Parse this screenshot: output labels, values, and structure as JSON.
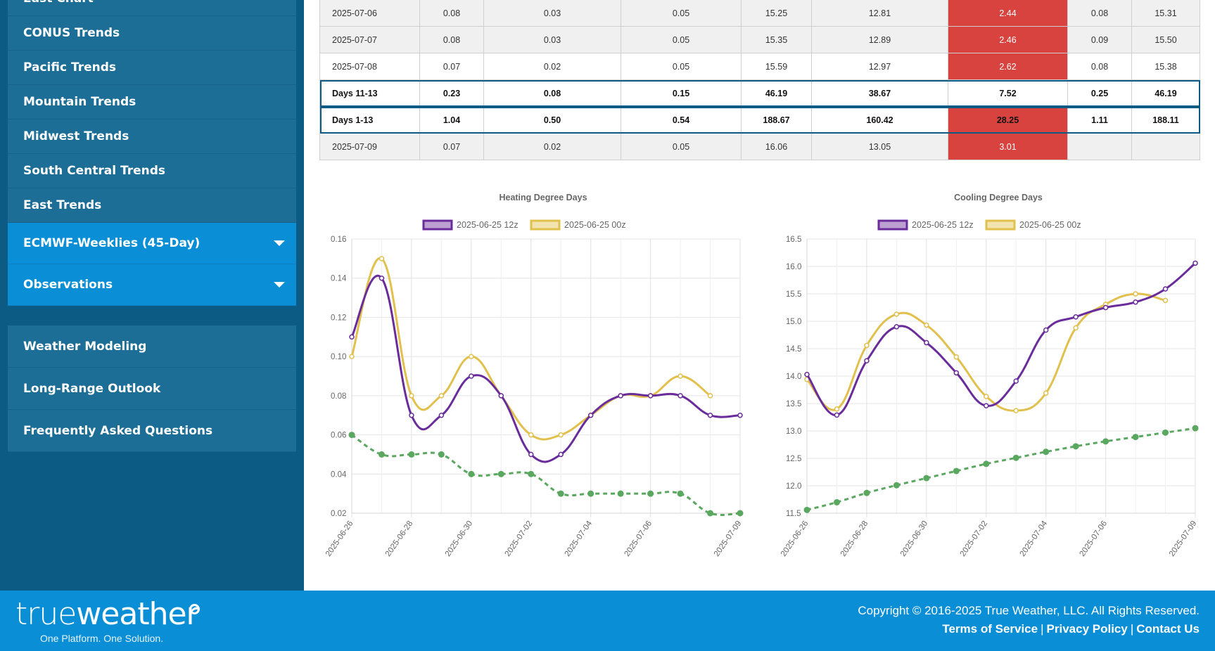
{
  "sidebar": {
    "group1": [
      "East Chart",
      "CONUS Trends",
      "Pacific Trends",
      "Mountain Trends",
      "Midwest Trends",
      "South Central Trends",
      "East Trends"
    ],
    "ecmwf_weeklies": "ECMWF-Weeklies (45-Day)",
    "observations": "Observations",
    "group2": [
      "Weather Modeling",
      "Long-Range Outlook",
      "Frequently Asked Questions"
    ]
  },
  "table": {
    "rows": [
      {
        "cells": [
          "2025-07-06",
          "0.08",
          "0.03",
          "0.05",
          "15.25",
          "12.81",
          "2.44",
          "0.08",
          "15.31"
        ],
        "style": "even",
        "highlight": true
      },
      {
        "cells": [
          "2025-07-07",
          "0.08",
          "0.03",
          "0.05",
          "15.35",
          "12.89",
          "2.46",
          "0.09",
          "15.50"
        ],
        "style": "even",
        "highlight": true
      },
      {
        "cells": [
          "2025-07-08",
          "0.07",
          "0.02",
          "0.05",
          "15.59",
          "12.97",
          "2.62",
          "0.08",
          "15.38"
        ],
        "style": "odd",
        "highlight": true
      },
      {
        "cells": [
          "Days 11-13",
          "0.23",
          "0.08",
          "0.15",
          "46.19",
          "38.67",
          "7.52",
          "0.25",
          "46.19"
        ],
        "style": "bold",
        "highlight": false
      },
      {
        "cells": [
          "Days 1-13",
          "1.04",
          "0.50",
          "0.54",
          "188.67",
          "160.42",
          "28.25",
          "1.11",
          "188.11"
        ],
        "style": "bold",
        "highlight": true
      },
      {
        "cells": [
          "2025-07-09",
          "0.07",
          "0.02",
          "0.05",
          "16.06",
          "13.05",
          "3.01",
          "",
          ""
        ],
        "style": "even",
        "highlight": true
      }
    ]
  },
  "colors": {
    "series_12z": "#6a2c9b",
    "series_00z": "#e2c04e",
    "normal": "#5aa860",
    "highlight": "#d9433f",
    "sidebar_bg": "#0b5b85",
    "footer_bg": "#0a8fd6"
  },
  "chart_data": [
    {
      "type": "line",
      "title": "Heating Degree Days",
      "legend_position": "top",
      "x": [
        "2025-06-26",
        "2025-06-27",
        "2025-06-28",
        "2025-06-29",
        "2025-06-30",
        "2025-07-01",
        "2025-07-02",
        "2025-07-03",
        "2025-07-04",
        "2025-07-05",
        "2025-07-06",
        "2025-07-07",
        "2025-07-08",
        "2025-07-09"
      ],
      "x_tick_labels": [
        "2025-06-26",
        "2025-06-28",
        "2025-06-30",
        "2025-07-02",
        "2025-07-04",
        "2025-07-06",
        "2025-07-09"
      ],
      "ylim": [
        0.02,
        0.16
      ],
      "y_ticks": [
        "0.02",
        "0.04",
        "0.06",
        "0.08",
        "0.10",
        "0.12",
        "0.14",
        "0.16"
      ],
      "grid": true,
      "series": [
        {
          "name": "2025-06-25 12z",
          "values": [
            0.11,
            0.14,
            0.07,
            0.07,
            0.09,
            0.08,
            0.05,
            0.05,
            0.07,
            0.08,
            0.08,
            0.08,
            0.07,
            0.07
          ]
        },
        {
          "name": "2025-06-25 00z",
          "values": [
            0.1,
            0.15,
            0.08,
            0.08,
            0.1,
            0.08,
            0.06,
            0.06,
            0.07,
            0.08,
            0.08,
            0.09,
            0.08,
            null
          ]
        },
        {
          "values": [
            0.06,
            0.05,
            0.05,
            0.05,
            0.04,
            0.04,
            0.04,
            0.03,
            0.03,
            0.03,
            0.03,
            0.03,
            0.02,
            0.02
          ]
        }
      ]
    },
    {
      "type": "line",
      "title": "Cooling Degree Days",
      "legend_position": "top",
      "x": [
        "2025-06-26",
        "2025-06-27",
        "2025-06-28",
        "2025-06-29",
        "2025-06-30",
        "2025-07-01",
        "2025-07-02",
        "2025-07-03",
        "2025-07-04",
        "2025-07-05",
        "2025-07-06",
        "2025-07-07",
        "2025-07-08",
        "2025-07-09"
      ],
      "x_tick_labels": [
        "2025-06-26",
        "2025-06-28",
        "2025-06-30",
        "2025-07-02",
        "2025-07-04",
        "2025-07-06",
        "2025-07-09"
      ],
      "ylim": [
        11.5,
        16.5
      ],
      "y_ticks": [
        "11.5",
        "12.0",
        "12.5",
        "13.0",
        "13.5",
        "14.0",
        "14.5",
        "15.0",
        "15.5",
        "16.0",
        "16.5"
      ],
      "grid": true,
      "series": [
        {
          "name": "2025-06-25 12z",
          "values": [
            14.03,
            13.29,
            14.28,
            14.9,
            14.61,
            14.06,
            13.46,
            13.91,
            14.84,
            15.08,
            15.25,
            15.35,
            15.59,
            16.06
          ]
        },
        {
          "name": "2025-06-25 00z",
          "values": [
            13.94,
            13.4,
            14.56,
            15.13,
            14.93,
            14.35,
            13.63,
            13.37,
            13.69,
            14.88,
            15.31,
            15.5,
            15.38,
            null
          ]
        },
        {
          "values": [
            11.56,
            11.7,
            11.87,
            12.01,
            12.14,
            12.27,
            12.4,
            12.51,
            12.62,
            12.72,
            12.81,
            12.89,
            12.97,
            13.05
          ]
        }
      ]
    }
  ],
  "footer": {
    "logo_light": "true",
    "logo_bold": "weather",
    "tagline": "One Platform. One Solution.",
    "copyright": "Copyright © 2016-2025 True Weather, LLC. All Rights Reserved.",
    "links": [
      "Terms of Service",
      "Privacy Policy",
      "Contact Us"
    ],
    "separator": "|"
  }
}
